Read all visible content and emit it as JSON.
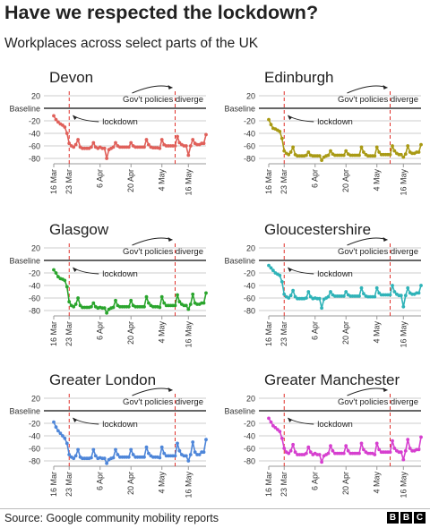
{
  "title": "Have we respected the lockdown?",
  "subtitle": "Workplaces across select parts of the UK",
  "source": "Source: Google community mobility reports",
  "logo": [
    "B",
    "B",
    "C"
  ],
  "chart_data": [
    {
      "type": "line",
      "title": "Devon",
      "color": "#e0605a",
      "values": [
        -12,
        -18,
        -22,
        -25,
        -27,
        -30,
        -40,
        -56,
        -60,
        -62,
        -58,
        -50,
        -62,
        -64,
        -64,
        -64,
        -64,
        -62,
        -55,
        -62,
        -64,
        -62,
        -64,
        -64,
        -80,
        -66,
        -64,
        -62,
        -55,
        -60,
        -62,
        -62,
        -62,
        -62,
        -62,
        -55,
        -60,
        -62,
        -62,
        -62,
        -62,
        -62,
        -50,
        -58,
        -62,
        -63,
        -63,
        -63,
        -64,
        -50,
        -58,
        -60,
        -60,
        -60,
        -60,
        -60,
        -45,
        -55,
        -58,
        -60,
        -60,
        -75,
        -60,
        -50,
        -56,
        -58,
        -58,
        -56,
        -56,
        -42
      ]
    },
    {
      "type": "line",
      "title": "Edinburgh",
      "color": "#a99a14",
      "values": [
        -18,
        -26,
        -32,
        -33,
        -35,
        -37,
        -48,
        -68,
        -72,
        -74,
        -70,
        -62,
        -74,
        -76,
        -76,
        -76,
        -76,
        -75,
        -70,
        -75,
        -76,
        -76,
        -76,
        -76,
        -83,
        -78,
        -76,
        -75,
        -68,
        -73,
        -75,
        -75,
        -75,
        -75,
        -75,
        -68,
        -73,
        -75,
        -75,
        -75,
        -75,
        -75,
        -62,
        -70,
        -74,
        -76,
        -76,
        -76,
        -76,
        -62,
        -70,
        -74,
        -74,
        -74,
        -74,
        -74,
        -60,
        -68,
        -72,
        -74,
        -74,
        -78,
        -73,
        -60,
        -70,
        -72,
        -72,
        -70,
        -70,
        -58
      ]
    },
    {
      "type": "line",
      "title": "Glasgow",
      "color": "#2aa52d",
      "values": [
        -15,
        -20,
        -26,
        -29,
        -30,
        -32,
        -42,
        -66,
        -72,
        -74,
        -70,
        -60,
        -72,
        -75,
        -75,
        -75,
        -75,
        -74,
        -68,
        -74,
        -76,
        -75,
        -76,
        -76,
        -84,
        -78,
        -76,
        -75,
        -64,
        -72,
        -74,
        -74,
        -74,
        -74,
        -74,
        -64,
        -72,
        -74,
        -74,
        -74,
        -74,
        -74,
        -58,
        -68,
        -72,
        -74,
        -74,
        -74,
        -75,
        -58,
        -68,
        -72,
        -72,
        -72,
        -72,
        -72,
        -55,
        -66,
        -70,
        -72,
        -72,
        -78,
        -70,
        -54,
        -68,
        -70,
        -70,
        -68,
        -68,
        -52
      ]
    },
    {
      "type": "line",
      "title": "Gloucestershire",
      "color": "#2fb3b8",
      "values": [
        -8,
        -12,
        -16,
        -20,
        -22,
        -24,
        -34,
        -54,
        -58,
        -60,
        -56,
        -48,
        -58,
        -61,
        -61,
        -61,
        -61,
        -60,
        -50,
        -58,
        -61,
        -60,
        -61,
        -61,
        -76,
        -62,
        -60,
        -58,
        -50,
        -55,
        -57,
        -57,
        -57,
        -57,
        -57,
        -50,
        -55,
        -57,
        -57,
        -57,
        -57,
        -57,
        -44,
        -53,
        -57,
        -58,
        -58,
        -58,
        -58,
        -44,
        -52,
        -55,
        -55,
        -55,
        -55,
        -55,
        -40,
        -50,
        -54,
        -56,
        -56,
        -74,
        -56,
        -44,
        -52,
        -54,
        -54,
        -52,
        -52,
        -40
      ]
    },
    {
      "type": "line",
      "title": "Greater London",
      "color": "#4e86d9",
      "values": [
        -18,
        -26,
        -32,
        -36,
        -40,
        -44,
        -52,
        -70,
        -74,
        -76,
        -72,
        -62,
        -74,
        -76,
        -76,
        -76,
        -76,
        -75,
        -62,
        -72,
        -76,
        -75,
        -76,
        -76,
        -84,
        -78,
        -76,
        -75,
        -62,
        -70,
        -74,
        -74,
        -74,
        -74,
        -74,
        -62,
        -70,
        -74,
        -74,
        -74,
        -74,
        -74,
        -58,
        -68,
        -72,
        -74,
        -74,
        -74,
        -75,
        -58,
        -68,
        -72,
        -72,
        -72,
        -72,
        -72,
        -52,
        -64,
        -70,
        -72,
        -72,
        -80,
        -70,
        -50,
        -66,
        -70,
        -70,
        -66,
        -66,
        -46
      ]
    },
    {
      "type": "line",
      "title": "Greater Manchester",
      "color": "#d63fcf",
      "values": [
        -12,
        -18,
        -24,
        -27,
        -30,
        -33,
        -44,
        -60,
        -66,
        -68,
        -64,
        -54,
        -66,
        -70,
        -70,
        -70,
        -70,
        -68,
        -58,
        -66,
        -70,
        -68,
        -70,
        -70,
        -82,
        -72,
        -70,
        -68,
        -56,
        -64,
        -68,
        -68,
        -68,
        -68,
        -68,
        -56,
        -64,
        -68,
        -68,
        -68,
        -68,
        -68,
        -52,
        -62,
        -66,
        -68,
        -68,
        -68,
        -70,
        -52,
        -62,
        -66,
        -66,
        -66,
        -66,
        -66,
        -48,
        -60,
        -64,
        -66,
        -66,
        -78,
        -64,
        -46,
        -60,
        -64,
        -64,
        -62,
        -62,
        -42
      ]
    }
  ],
  "axis": {
    "y_ticks": [
      20,
      -20,
      -40,
      -60,
      -80
    ],
    "baseline_label": "Baseline",
    "x_ticks": [
      "16 Mar",
      "23 Mar",
      "6 Apr",
      "20 Apr",
      "4 May",
      "16 May"
    ],
    "x_tick_days": [
      0,
      7,
      21,
      35,
      49,
      61
    ],
    "lockdown_day": 7,
    "diverge_day": 55,
    "days": 70
  },
  "annotations": {
    "lockdown": "lockdown",
    "diverge": "Gov't policies diverge"
  }
}
